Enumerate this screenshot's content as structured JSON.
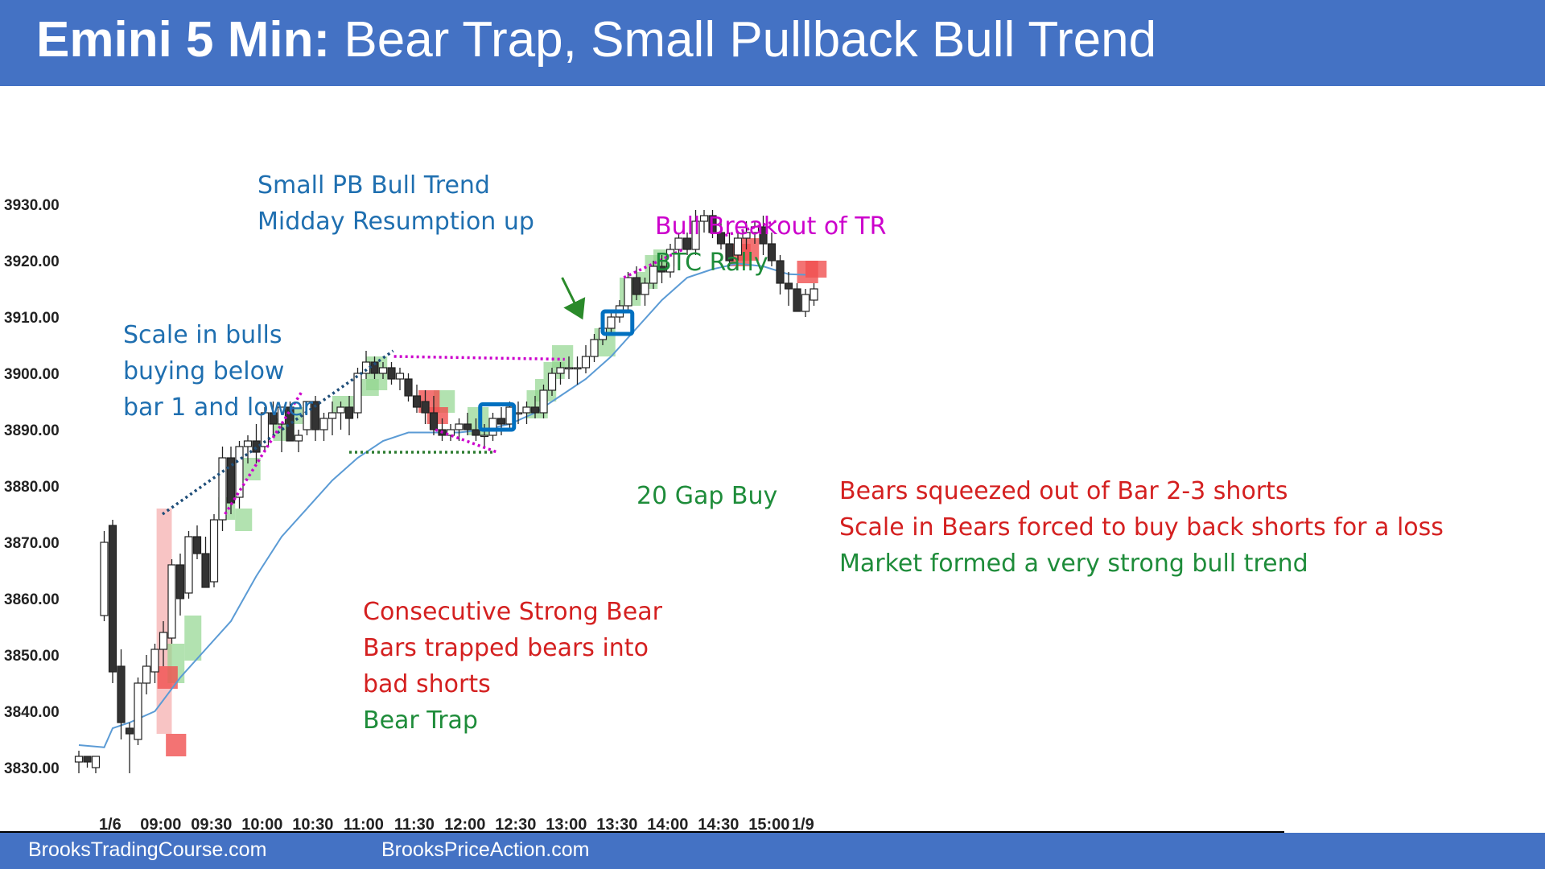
{
  "header": {
    "title_bold": "Emini 5 Min:",
    "title_rest": " Bear Trap, Small Pullback Bull Trend"
  },
  "footer": {
    "left": "BrooksTradingCourse.com",
    "right": "BrooksPriceAction.com"
  },
  "colors": {
    "header_bg": "#4472c4",
    "ema": "#5b9bd5",
    "bull_highlight": "#92d68f",
    "bear_highlight": "#f05050",
    "signal_box": "#0070c0",
    "magenta": "#cc00cc",
    "navy_dotted": "#1f4e79",
    "green_dotted": "#2e7d32",
    "blue_text": "#1f6fb0",
    "red_text": "#d42020",
    "green_text": "#1e8c3a"
  },
  "chart_data": {
    "type": "candlestick",
    "title": "Emini 5 Min: Bear Trap, Small Pullback Bull Trend",
    "ylim": [
      3827,
      3931
    ],
    "y_ticks": [
      "3830.00",
      "3840.00",
      "3850.00",
      "3860.00",
      "3870.00",
      "3880.00",
      "3890.00",
      "3900.00",
      "3910.00",
      "3920.00",
      "3930.00"
    ],
    "x_ticks": [
      {
        "label": "1/6",
        "bar": 3.7
      },
      {
        "label": "09:00",
        "bar": 9.7
      },
      {
        "label": "09:30",
        "bar": 15.7
      },
      {
        "label": "10:00",
        "bar": 21.7
      },
      {
        "label": "10:30",
        "bar": 27.7
      },
      {
        "label": "11:00",
        "bar": 33.7
      },
      {
        "label": "11:30",
        "bar": 39.7
      },
      {
        "label": "12:00",
        "bar": 45.7
      },
      {
        "label": "12:30",
        "bar": 51.7
      },
      {
        "label": "13:00",
        "bar": 57.7
      },
      {
        "label": "13:30",
        "bar": 63.7
      },
      {
        "label": "14:00",
        "bar": 69.7
      },
      {
        "label": "14:30",
        "bar": 75.7
      },
      {
        "label": "15:00",
        "bar": 81.7
      },
      {
        "label": "1/9",
        "bar": 85.7
      }
    ],
    "candles": [
      [
        3831,
        3833,
        3829,
        3832
      ],
      [
        3832,
        3832,
        3830,
        3831
      ],
      [
        3830,
        3832,
        3829,
        3832
      ],
      [
        3857,
        3872,
        3856,
        3870
      ],
      [
        3873,
        3874,
        3845,
        3847
      ],
      [
        3848,
        3851,
        3835,
        3838
      ],
      [
        3837,
        3838,
        3829,
        3836
      ],
      [
        3835,
        3846,
        3834,
        3845
      ],
      [
        3845,
        3850,
        3843,
        3848
      ],
      [
        3847,
        3852,
        3845,
        3851
      ],
      [
        3851,
        3856,
        3848,
        3854
      ],
      [
        3853,
        3867,
        3852,
        3866
      ],
      [
        3866,
        3868,
        3857,
        3860
      ],
      [
        3861,
        3872,
        3860,
        3871
      ],
      [
        3871,
        3873,
        3867,
        3868
      ],
      [
        3868,
        3871,
        3862,
        3862
      ],
      [
        3863,
        3875,
        3862,
        3874
      ],
      [
        3874,
        3887,
        3872,
        3885
      ],
      [
        3885,
        3887,
        3875,
        3877
      ],
      [
        3878,
        3888,
        3876,
        3887
      ],
      [
        3887,
        3889,
        3884,
        3888
      ],
      [
        3888,
        3891,
        3884,
        3886
      ],
      [
        3887,
        3894,
        3886,
        3893
      ],
      [
        3893,
        3895,
        3889,
        3891
      ],
      [
        3891,
        3894,
        3886,
        3894
      ],
      [
        3894,
        3895,
        3888,
        3888
      ],
      [
        3888,
        3890,
        3886,
        3889
      ],
      [
        3890,
        3895,
        3889,
        3895
      ],
      [
        3895,
        3896,
        3888,
        3890
      ],
      [
        3890,
        3893,
        3888,
        3892
      ],
      [
        3892,
        3895,
        3889,
        3893
      ],
      [
        3893,
        3895,
        3890,
        3894
      ],
      [
        3894,
        3896,
        3889,
        3892
      ],
      [
        3893,
        3901,
        3892,
        3900
      ],
      [
        3900,
        3904,
        3899,
        3902
      ],
      [
        3902,
        3903,
        3899,
        3900
      ],
      [
        3900,
        3902,
        3899,
        3901
      ],
      [
        3901,
        3902,
        3898,
        3899
      ],
      [
        3899,
        3901,
        3897,
        3900
      ],
      [
        3899,
        3900,
        3895,
        3896
      ],
      [
        3896,
        3898,
        3893,
        3894
      ],
      [
        3895,
        3897,
        3891,
        3893
      ],
      [
        3893,
        3896,
        3889,
        3890
      ],
      [
        3890,
        3892,
        3888,
        3889
      ],
      [
        3889,
        3891,
        3888,
        3890
      ],
      [
        3890,
        3892,
        3888,
        3891
      ],
      [
        3891,
        3893,
        3889,
        3890
      ],
      [
        3890,
        3892,
        3888,
        3889
      ],
      [
        3889,
        3891,
        3887,
        3889
      ],
      [
        3889,
        3893,
        3888,
        3892
      ],
      [
        3892,
        3894,
        3889,
        3891
      ],
      [
        3891,
        3895,
        3890,
        3894
      ],
      [
        3893,
        3895,
        3891,
        3893
      ],
      [
        3893,
        3895,
        3891,
        3894
      ],
      [
        3894,
        3896,
        3892,
        3893
      ],
      [
        3893,
        3898,
        3892,
        3897
      ],
      [
        3897,
        3901,
        3896,
        3900
      ],
      [
        3900,
        3902,
        3898,
        3901
      ],
      [
        3901,
        3903,
        3899,
        3901
      ],
      [
        3901,
        3903,
        3898,
        3901
      ],
      [
        3901,
        3905,
        3900,
        3903
      ],
      [
        3903,
        3907,
        3902,
        3906
      ],
      [
        3906,
        3909,
        3905,
        3908
      ],
      [
        3908,
        3911,
        3907,
        3910
      ],
      [
        3910,
        3913,
        3909,
        3912
      ],
      [
        3912,
        3918,
        3911,
        3917
      ],
      [
        3917,
        3919,
        3913,
        3914
      ],
      [
        3914,
        3917,
        3912,
        3916
      ],
      [
        3916,
        3920,
        3915,
        3919
      ],
      [
        3919,
        3921,
        3916,
        3918
      ],
      [
        3918,
        3923,
        3917,
        3922
      ],
      [
        3922,
        3925,
        3920,
        3924
      ],
      [
        3924,
        3925,
        3921,
        3922
      ],
      [
        3922,
        3929,
        3921,
        3927
      ],
      [
        3927,
        3929,
        3925,
        3928
      ],
      [
        3928,
        3929,
        3924,
        3925
      ],
      [
        3925,
        3927,
        3922,
        3923
      ],
      [
        3923,
        3925,
        3919,
        3920
      ],
      [
        3921,
        3925,
        3920,
        3924
      ],
      [
        3924,
        3927,
        3922,
        3925
      ],
      [
        3925,
        3927,
        3923,
        3926
      ],
      [
        3926,
        3928,
        3921,
        3923
      ],
      [
        3923,
        3925,
        3919,
        3920
      ],
      [
        3920,
        3921,
        3914,
        3916
      ],
      [
        3916,
        3918,
        3912,
        3915
      ],
      [
        3915,
        3916,
        3911,
        3911
      ],
      [
        3911,
        3915,
        3910,
        3914
      ],
      [
        3913,
        3916,
        3912,
        3915
      ]
    ],
    "ema": [
      [
        0,
        3834
      ],
      [
        3,
        3833.6
      ],
      [
        4,
        3837
      ],
      [
        6,
        3838
      ],
      [
        9,
        3840
      ],
      [
        12,
        3846
      ],
      [
        15,
        3851
      ],
      [
        18,
        3856
      ],
      [
        21,
        3864
      ],
      [
        24,
        3871
      ],
      [
        27,
        3876
      ],
      [
        30,
        3881
      ],
      [
        33,
        3885
      ],
      [
        36,
        3888
      ],
      [
        39,
        3889.5
      ],
      [
        42,
        3889.5
      ],
      [
        45,
        3889.5
      ],
      [
        48,
        3890
      ],
      [
        51,
        3891
      ],
      [
        54,
        3893
      ],
      [
        57,
        3896
      ],
      [
        60,
        3899
      ],
      [
        63,
        3903
      ],
      [
        66,
        3908
      ],
      [
        69,
        3913
      ],
      [
        72,
        3917
      ],
      [
        75,
        3918.5
      ],
      [
        78,
        3919.5
      ],
      [
        81,
        3919
      ],
      [
        84,
        3917.6
      ],
      [
        86,
        3917.5
      ]
    ],
    "bull_highlights": [
      [
        10.5,
        12.5,
        3845,
        3852
      ],
      [
        12.5,
        14.5,
        3849,
        3857
      ],
      [
        16.5,
        18.5,
        3874,
        3878
      ],
      [
        18.5,
        20.5,
        3872,
        3876
      ],
      [
        19.5,
        21.5,
        3881,
        3885
      ],
      [
        23,
        25.5,
        3888,
        3892
      ],
      [
        24,
        26.5,
        3891,
        3894
      ],
      [
        30,
        32.5,
        3893,
        3896
      ],
      [
        33,
        35.5,
        3896,
        3899
      ],
      [
        34,
        36.5,
        3897,
        3903
      ],
      [
        42,
        44.5,
        3893,
        3897
      ],
      [
        46,
        48.5,
        3889,
        3894
      ],
      [
        53,
        55.5,
        3892,
        3897
      ],
      [
        54,
        56.5,
        3895,
        3899
      ],
      [
        55,
        57.5,
        3899,
        3902
      ],
      [
        56,
        58.5,
        3901,
        3905
      ],
      [
        61,
        63.5,
        3903,
        3908
      ],
      [
        64,
        66.5,
        3912,
        3917
      ],
      [
        66,
        68.5,
        3915,
        3918
      ],
      [
        67,
        69.5,
        3918,
        3921
      ],
      [
        68,
        70.5,
        3919,
        3922
      ]
    ],
    "bear_highlights": [
      [
        9.3,
        11.7,
        3844,
        3848
      ],
      [
        10.3,
        12.7,
        3832,
        3836
      ],
      [
        40.2,
        42.7,
        3893,
        3897
      ],
      [
        41.2,
        43.7,
        3891,
        3894
      ],
      [
        77,
        79.5,
        3919,
        3923
      ],
      [
        78,
        80.5,
        3920,
        3924
      ],
      [
        85,
        87.5,
        3916,
        3920
      ],
      [
        86,
        88.5,
        3917,
        3920
      ]
    ],
    "pink_tall_bar": [
      9.2,
      11.0,
      3836,
      3876
    ],
    "signal_boxes": [
      [
        47.5,
        51.5,
        3890,
        3894.5
      ],
      [
        62,
        65.5,
        3907,
        3911
      ]
    ],
    "lines": [
      {
        "style": "navy-dotted",
        "points": [
          [
            9.9,
            3875
          ],
          [
            37.2,
            3904
          ]
        ]
      },
      {
        "style": "magenta-dotted",
        "points": [
          [
            17.3,
            3875
          ],
          [
            26.5,
            3897
          ]
        ]
      },
      {
        "style": "magenta-dotted",
        "points": [
          [
            37.3,
            3903
          ],
          [
            57.5,
            3902.5
          ]
        ]
      },
      {
        "style": "magenta-dotted",
        "points": [
          [
            42.2,
            3890
          ],
          [
            49.5,
            3886
          ]
        ]
      },
      {
        "style": "green-dotted",
        "points": [
          [
            32,
            3886
          ],
          [
            49,
            3886
          ]
        ]
      },
      {
        "style": "magenta-dotted",
        "points": [
          [
            64.5,
            3917
          ],
          [
            71.5,
            3922
          ]
        ]
      },
      {
        "style": "magenta-dotted",
        "points": [
          [
            76.5,
            3924.5
          ],
          [
            82.5,
            3927
          ]
        ]
      }
    ],
    "arrows": [
      {
        "from": [
          57.2,
          3917
        ],
        "to": [
          59.4,
          3910.3
        ]
      }
    ],
    "annotations": [
      {
        "key": "a1",
        "lines": [
          "Small PB Bull Trend",
          "Midday Resumption up"
        ],
        "colors": [
          "blue",
          "blue"
        ]
      },
      {
        "key": "a2",
        "lines": [
          "Scale in bulls",
          "buying below",
          "bar 1 and lower"
        ],
        "colors": [
          "blue",
          "blue",
          "blue"
        ]
      },
      {
        "key": "a3",
        "lines": [
          "Bull Breakout of TR",
          "BTC Rally"
        ],
        "colors": [
          "magenta",
          "green"
        ]
      },
      {
        "key": "a4",
        "lines": [
          "20 Gap Buy"
        ],
        "colors": [
          "green"
        ]
      },
      {
        "key": "a5",
        "lines": [
          "Bears squeezed  out of Bar 2-3 shorts",
          "Scale in Bears forced to buy back shorts for a loss",
          "Market formed a very strong bull trend"
        ],
        "colors": [
          "red",
          "red",
          "green"
        ]
      },
      {
        "key": "a6",
        "lines": [
          "Consecutive Strong Bear",
          "Bars trapped bears into",
          "bad shorts",
          "Bear Trap"
        ],
        "colors": [
          "red",
          "red",
          "red",
          "green"
        ]
      }
    ]
  }
}
